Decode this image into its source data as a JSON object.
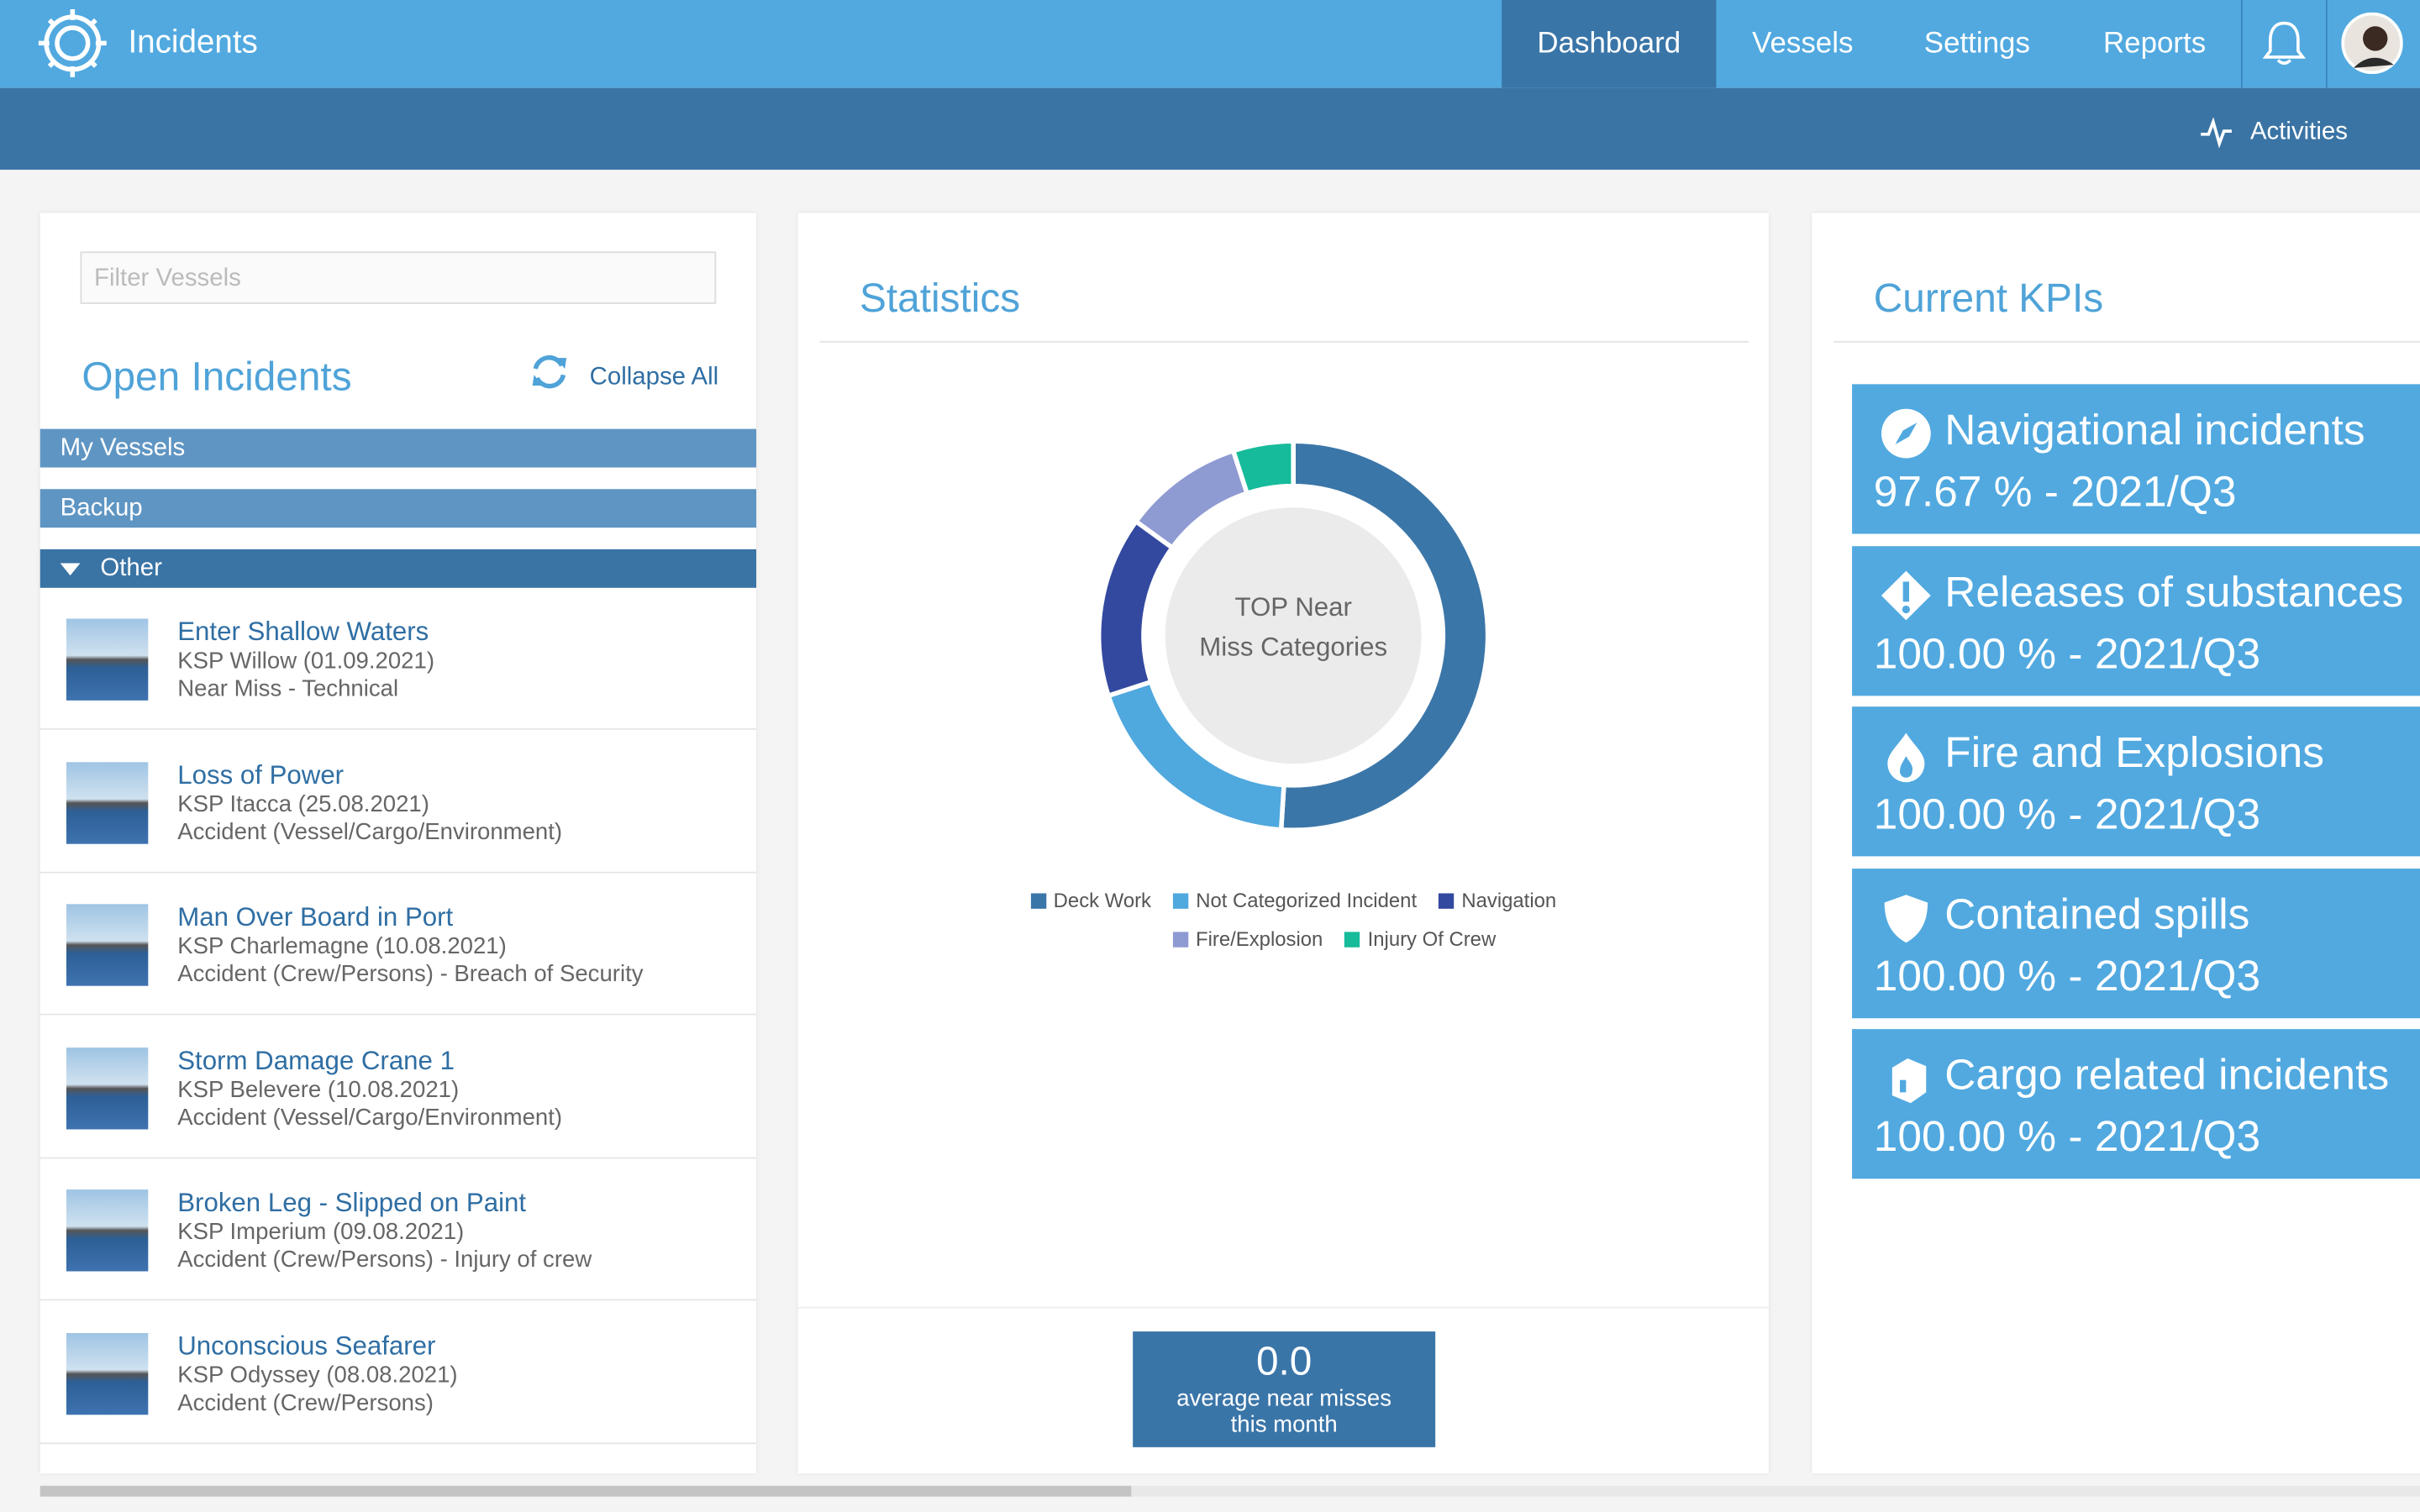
{
  "header": {
    "app_title": "Incidents",
    "nav": [
      "Dashboard",
      "Vessels",
      "Settings",
      "Reports"
    ],
    "activities": "Activities"
  },
  "sidebar": {
    "filter_placeholder": "Filter Vessels",
    "title": "Open Incidents",
    "collapse_all": "Collapse All",
    "groups": [
      "My Vessels",
      "Backup",
      "Other"
    ],
    "incidents": [
      {
        "title": "Enter Shallow Waters",
        "vessel": "KSP Willow (01.09.2021)",
        "category": "Near Miss - Technical"
      },
      {
        "title": "Loss of Power",
        "vessel": "KSP Itacca (25.08.2021)",
        "category": "Accident (Vessel/Cargo/Environment)"
      },
      {
        "title": "Man Over Board in Port",
        "vessel": "KSP Charlemagne (10.08.2021)",
        "category": "Accident (Crew/Persons) - Breach of Security"
      },
      {
        "title": "Storm Damage Crane 1",
        "vessel": "KSP Belevere (10.08.2021)",
        "category": "Accident (Vessel/Cargo/Environment)"
      },
      {
        "title": "Broken Leg - Slipped on Paint",
        "vessel": "KSP Imperium (09.08.2021)",
        "category": "Accident (Crew/Persons) - Injury of crew"
      },
      {
        "title": "Unconscious Seafarer",
        "vessel": "KSP Odyssey (08.08.2021)",
        "category": "Accident (Crew/Persons)"
      }
    ]
  },
  "statistics": {
    "title": "Statistics",
    "footer_value": "0.0",
    "footer_label": "average near misses this month"
  },
  "chart_data": {
    "type": "pie",
    "title": "TOP Near Miss Categories",
    "donut": true,
    "categories": [
      "Deck Work",
      "Not Categorized Incident",
      "Navigation",
      "Fire/Explosion",
      "Injury Of Crew"
    ],
    "values": [
      51,
      19,
      15,
      10,
      5
    ],
    "colors": [
      "#3b76a8",
      "#4fa8de",
      "#3349a0",
      "#8e9ad2",
      "#16bb9b"
    ],
    "legend": "bottom"
  },
  "kpis": {
    "title": "Current KPIs",
    "items": [
      {
        "name": "Navigational incidents",
        "value": "97.67 % - 2021/Q3"
      },
      {
        "name": "Releases of substances",
        "value": "100.00 % - 2021/Q3"
      },
      {
        "name": "Fire and Explosions",
        "value": "100.00 % - 2021/Q3"
      },
      {
        "name": "Contained spills",
        "value": "100.00 % - 2021/Q3"
      },
      {
        "name": "Cargo related incidents",
        "value": "100.00 % - 2021/Q3"
      }
    ]
  }
}
